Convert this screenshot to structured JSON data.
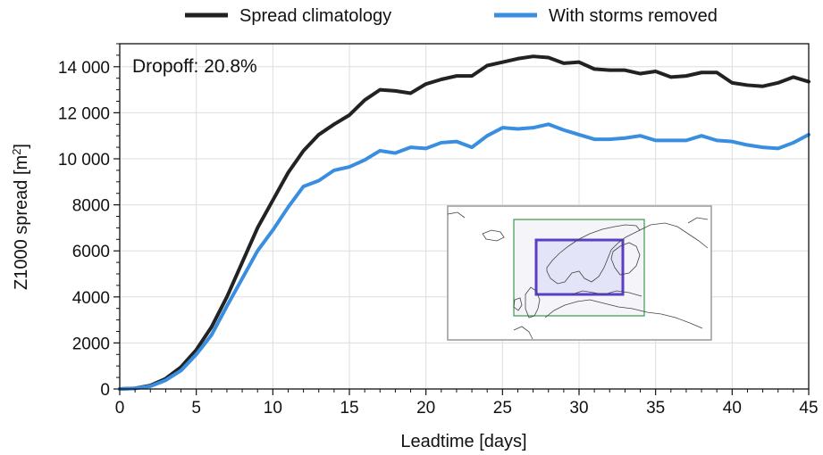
{
  "chart_data": {
    "type": "line",
    "xlabel": "Leadtime [days]",
    "ylabel_main": "Z1000 spread [m",
    "ylabel_sup": "2",
    "ylabel_close": "]",
    "xlim": [
      0,
      45
    ],
    "ylim": [
      0,
      15000
    ],
    "xticks": [
      0,
      5,
      10,
      15,
      20,
      25,
      30,
      35,
      40,
      45
    ],
    "xtick_labels": [
      "0",
      "5",
      "10",
      "15",
      "20",
      "25",
      "30",
      "35",
      "40",
      "45"
    ],
    "yticks": [
      0,
      2000,
      4000,
      6000,
      8000,
      10000,
      12000,
      14000
    ],
    "ytick_labels": [
      "0",
      "2000",
      "4000",
      "6000",
      "8000",
      "10 000",
      "12 000",
      "14 000"
    ],
    "grid": true,
    "legend_position": "top",
    "annotation": "Dropoff: 20.8%",
    "x": [
      0,
      1,
      2,
      3,
      4,
      5,
      6,
      7,
      8,
      9,
      10,
      11,
      12,
      13,
      14,
      15,
      16,
      17,
      18,
      19,
      20,
      21,
      22,
      23,
      24,
      25,
      26,
      27,
      28,
      29,
      30,
      31,
      32,
      33,
      34,
      35,
      36,
      37,
      38,
      39,
      40,
      41,
      42,
      43,
      44,
      45
    ],
    "series": [
      {
        "name": "Spread climatology",
        "color": "#222222",
        "values": [
          0,
          30,
          150,
          450,
          950,
          1700,
          2700,
          4000,
          5500,
          7000,
          8200,
          9400,
          10350,
          11050,
          11500,
          11900,
          12550,
          13000,
          12950,
          12850,
          13250,
          13450,
          13600,
          13600,
          14050,
          14200,
          14350,
          14450,
          14400,
          14150,
          14200,
          13900,
          13850,
          13850,
          13700,
          13800,
          13550,
          13600,
          13750,
          13750,
          13300,
          13200,
          13150,
          13300,
          13550,
          13350
        ]
      },
      {
        "name": "With storms removed",
        "color": "#3a8ee0",
        "values": [
          0,
          25,
          120,
          380,
          800,
          1500,
          2350,
          3600,
          4800,
          6000,
          6900,
          7900,
          8800,
          9050,
          9500,
          9650,
          9950,
          10350,
          10250,
          10500,
          10450,
          10700,
          10750,
          10500,
          11000,
          11350,
          11300,
          11350,
          11500,
          11250,
          11050,
          10850,
          10850,
          10900,
          11000,
          10800,
          10800,
          10800,
          11000,
          10800,
          10750,
          10600,
          10500,
          10450,
          10700,
          11050
        ]
      }
    ]
  },
  "inset_colors": {
    "outer_box": "#3a9a4a",
    "inner_box": "#5a3ec8",
    "frame": "#999999"
  }
}
